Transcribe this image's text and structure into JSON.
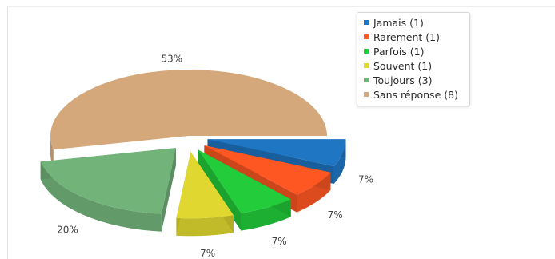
{
  "chart_data": {
    "type": "pie",
    "categories": [
      "Jamais",
      "Rarement",
      "Parfois",
      "Souvent",
      "Toujours",
      "Sans réponse"
    ],
    "values": [
      1,
      1,
      1,
      1,
      3,
      8
    ],
    "percent_labels": [
      "7%",
      "7%",
      "7%",
      "7%",
      "20%",
      "53%"
    ],
    "legend_labels": [
      "Jamais (1)",
      "Rarement (1)",
      "Parfois (1)",
      "Souvent (1)",
      "Toujours (3)",
      "Sans réponse (8)"
    ],
    "colors": [
      "#1f77c4",
      "#ff5722",
      "#22cc3a",
      "#e0d830",
      "#72b37a",
      "#d4a87a"
    ],
    "exploded": [
      true,
      true,
      true,
      true,
      true,
      false
    ],
    "style": "3d-tilted",
    "legend_position": "top-right"
  }
}
